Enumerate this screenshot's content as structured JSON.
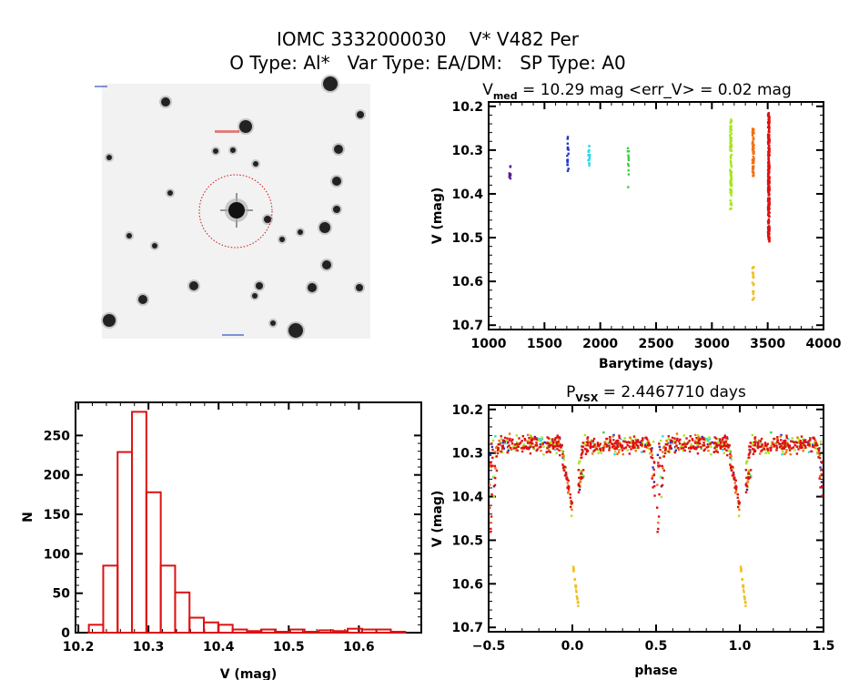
{
  "header": {
    "line1": "IOMC 3332000030    V* V482 Per",
    "line2": "O Type: Al*   Var Type: EA/DM:   SP Type: A0"
  },
  "chart_data": [
    {
      "type": "image",
      "name": "finding-chart",
      "description_visible": "grayscale star field with target circled in red"
    },
    {
      "type": "scatter",
      "name": "light-curve",
      "title_main": "V",
      "title_sub": "med",
      "title_rest": " = 10.29 mag <err_V> = 0.02 mag",
      "xlabel": "Barytime (days)",
      "ylabel": "V (mag)",
      "xlim": [
        1000,
        4000
      ],
      "ylim": [
        10.19,
        10.71
      ],
      "y_inverted": true,
      "xticks": [
        "1000",
        "1500",
        "2000",
        "2500",
        "3000",
        "3500",
        "4000"
      ],
      "yticks": [
        "10.2",
        "10.3",
        "10.4",
        "10.5",
        "10.6",
        "10.7"
      ],
      "seasons": [
        {
          "t": 1190,
          "mag_range": [
            10.33,
            10.37
          ],
          "n": 10,
          "color": "#5b1c8c"
        },
        {
          "t": 1710,
          "mag_range": [
            10.26,
            10.35
          ],
          "n": 18,
          "color": "#2038c8"
        },
        {
          "t": 1900,
          "mag_range": [
            10.29,
            10.34
          ],
          "n": 18,
          "color": "#30d8e8"
        },
        {
          "t": 2250,
          "mag_range": [
            10.295,
            10.385
          ],
          "n": 12,
          "color": "#38d040"
        },
        {
          "t": 3170,
          "mag_range": [
            10.225,
            10.44
          ],
          "n": 90,
          "color": "#a6e620"
        },
        {
          "t": 3370,
          "mag_range": [
            10.25,
            10.36
          ],
          "n": 60,
          "color": "#f07010"
        },
        {
          "t": 3370,
          "mag_range": [
            10.555,
            10.645
          ],
          "n": 20,
          "color": "#f0c020"
        },
        {
          "t": 3510,
          "mag_range": [
            10.215,
            10.51
          ],
          "n": 260,
          "color": "#e01010"
        }
      ]
    },
    {
      "type": "bar",
      "name": "histogram",
      "xlabel": "V (mag)",
      "ylabel": "N",
      "bin_start": 10.215,
      "bin_width": 0.0205,
      "values": [
        10,
        85,
        229,
        280,
        178,
        85,
        51,
        19,
        13,
        10,
        4,
        2,
        4,
        1,
        4,
        0,
        3,
        2,
        5,
        4,
        4,
        1
      ],
      "xlim": [
        10.196,
        10.689
      ],
      "ylim": [
        0,
        292
      ],
      "xticks": [
        "10.2",
        "10.3",
        "10.4",
        "10.5",
        "10.6"
      ],
      "yticks": [
        "0",
        "50",
        "100",
        "150",
        "200",
        "250"
      ],
      "color": "#dd1111"
    },
    {
      "type": "scatter",
      "name": "phase-curve",
      "title_main": "P",
      "title_sub": "VSX",
      "title_rest": " = 2.4467710 days",
      "period_days": 2.446771,
      "xlabel": "phase",
      "ylabel": "V (mag)",
      "xlim": [
        -0.5,
        1.5
      ],
      "ylim": [
        10.19,
        10.71
      ],
      "y_inverted": true,
      "xticks": [
        "-0.5",
        "0.0",
        "0.5",
        "1.0",
        "1.5"
      ],
      "yticks": [
        "10.2",
        "10.3",
        "10.4",
        "10.5",
        "10.6",
        "10.7"
      ],
      "baseline_mag": 10.28,
      "primary_min": {
        "phase": 0.01,
        "mag": 10.65
      },
      "secondary_min": {
        "phase": 0.51,
        "mag": 10.51
      }
    }
  ]
}
